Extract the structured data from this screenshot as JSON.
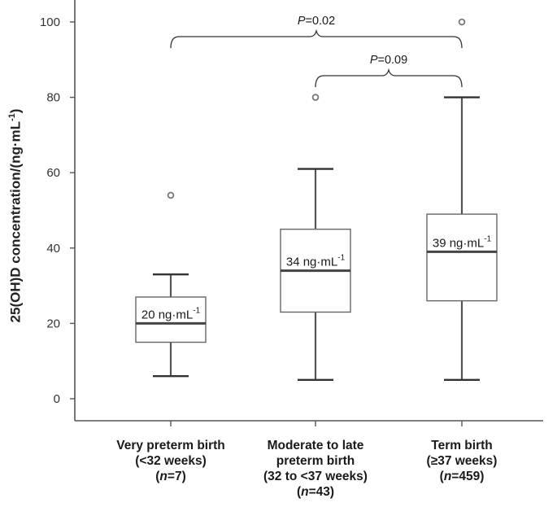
{
  "chart_data": {
    "type": "box",
    "ylabel": "25(OH)D concentration/(ng·mL",
    "ylabel_sup": "-1",
    "ylabel_end": ")",
    "ylim": [
      0,
      100
    ],
    "yticks": [
      0,
      20,
      40,
      60,
      80,
      100
    ],
    "grid": false,
    "categories": [
      {
        "lines": [
          "Very preterm birth",
          "(<32 weeks)"
        ],
        "n_prefix": "(",
        "n_var": "n",
        "n_value": "=7)"
      },
      {
        "lines": [
          "Moderate to late",
          "preterm birth",
          "(32 to <37 weeks)"
        ],
        "n_prefix": "(",
        "n_var": "n",
        "n_value": "=43)"
      },
      {
        "lines": [
          "Term birth",
          "(≥37 weeks)"
        ],
        "n_prefix": "(",
        "n_var": "n",
        "n_value": "=459)"
      }
    ],
    "boxes": [
      {
        "whisker_low": 6,
        "q1": 15,
        "median": 20,
        "q3": 27,
        "whisker_high": 33,
        "outliers": [
          54
        ],
        "median_label": "20 ng·mL",
        "label_sup": "-1"
      },
      {
        "whisker_low": 5,
        "q1": 23,
        "median": 34,
        "q3": 45,
        "whisker_high": 61,
        "outliers": [
          80
        ],
        "median_label": "34 ng·mL",
        "label_sup": "-1"
      },
      {
        "whisker_low": 5,
        "q1": 26,
        "median": 39,
        "q3": 49,
        "whisker_high": 80,
        "outliers": [
          100
        ],
        "median_label": "39 ng·mL",
        "label_sup": "-1"
      }
    ],
    "comparisons": [
      {
        "from": 0,
        "to": 2,
        "p_var": "P",
        "p_text": "=0.02"
      },
      {
        "from": 1,
        "to": 2,
        "p_var": "P",
        "p_text": "=0.09"
      }
    ]
  }
}
